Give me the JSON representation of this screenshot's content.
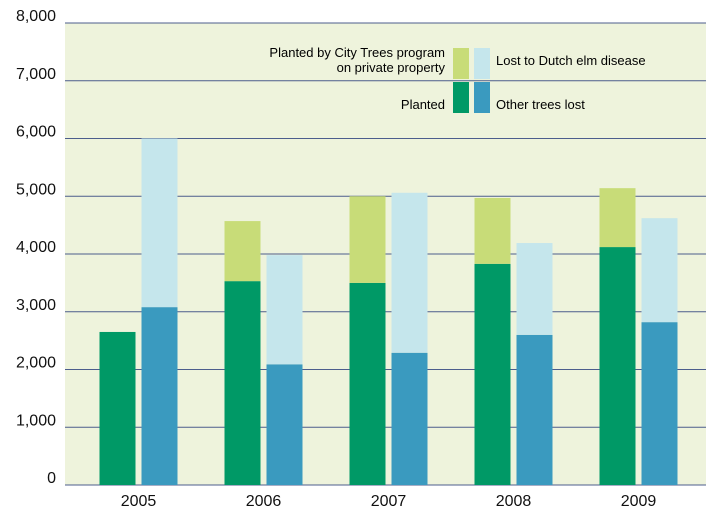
{
  "chart_data": {
    "type": "stacked-grouped-bar",
    "categories": [
      "2005",
      "2006",
      "2007",
      "2008",
      "2009"
    ],
    "series": [
      {
        "name": "Planted",
        "color": "#009966",
        "stack": "planted",
        "values": [
          2650,
          3530,
          3500,
          3830,
          4120
        ]
      },
      {
        "name": "Planted by City Trees program on private property",
        "color": "#c8dc78",
        "stack": "planted",
        "values": [
          0,
          1040,
          1500,
          1140,
          1020
        ]
      },
      {
        "name": "Other trees lost",
        "color": "#3a9abf",
        "stack": "lost",
        "values": [
          3080,
          2090,
          2290,
          2600,
          2820
        ]
      },
      {
        "name": "Lost to Dutch elm disease",
        "color": "#c5e6ec",
        "stack": "lost",
        "values": [
          2920,
          1890,
          2770,
          1590,
          1800
        ]
      }
    ],
    "ylim": [
      0,
      8000
    ],
    "yticks": [
      0,
      {
        "value": 1000,
        "label": "1,000"
      },
      {
        "value": 2000,
        "label": "2,000"
      },
      {
        "value": 3000,
        "label": "3,000"
      },
      {
        "value": 4000,
        "label": "4,000"
      },
      {
        "value": 5000,
        "label": "5,000"
      },
      {
        "value": 6000,
        "label": "6,000"
      },
      {
        "value": 7000,
        "label": "7,000"
      },
      {
        "value": 8000,
        "label": "8,000"
      }
    ],
    "grid": true
  }
}
